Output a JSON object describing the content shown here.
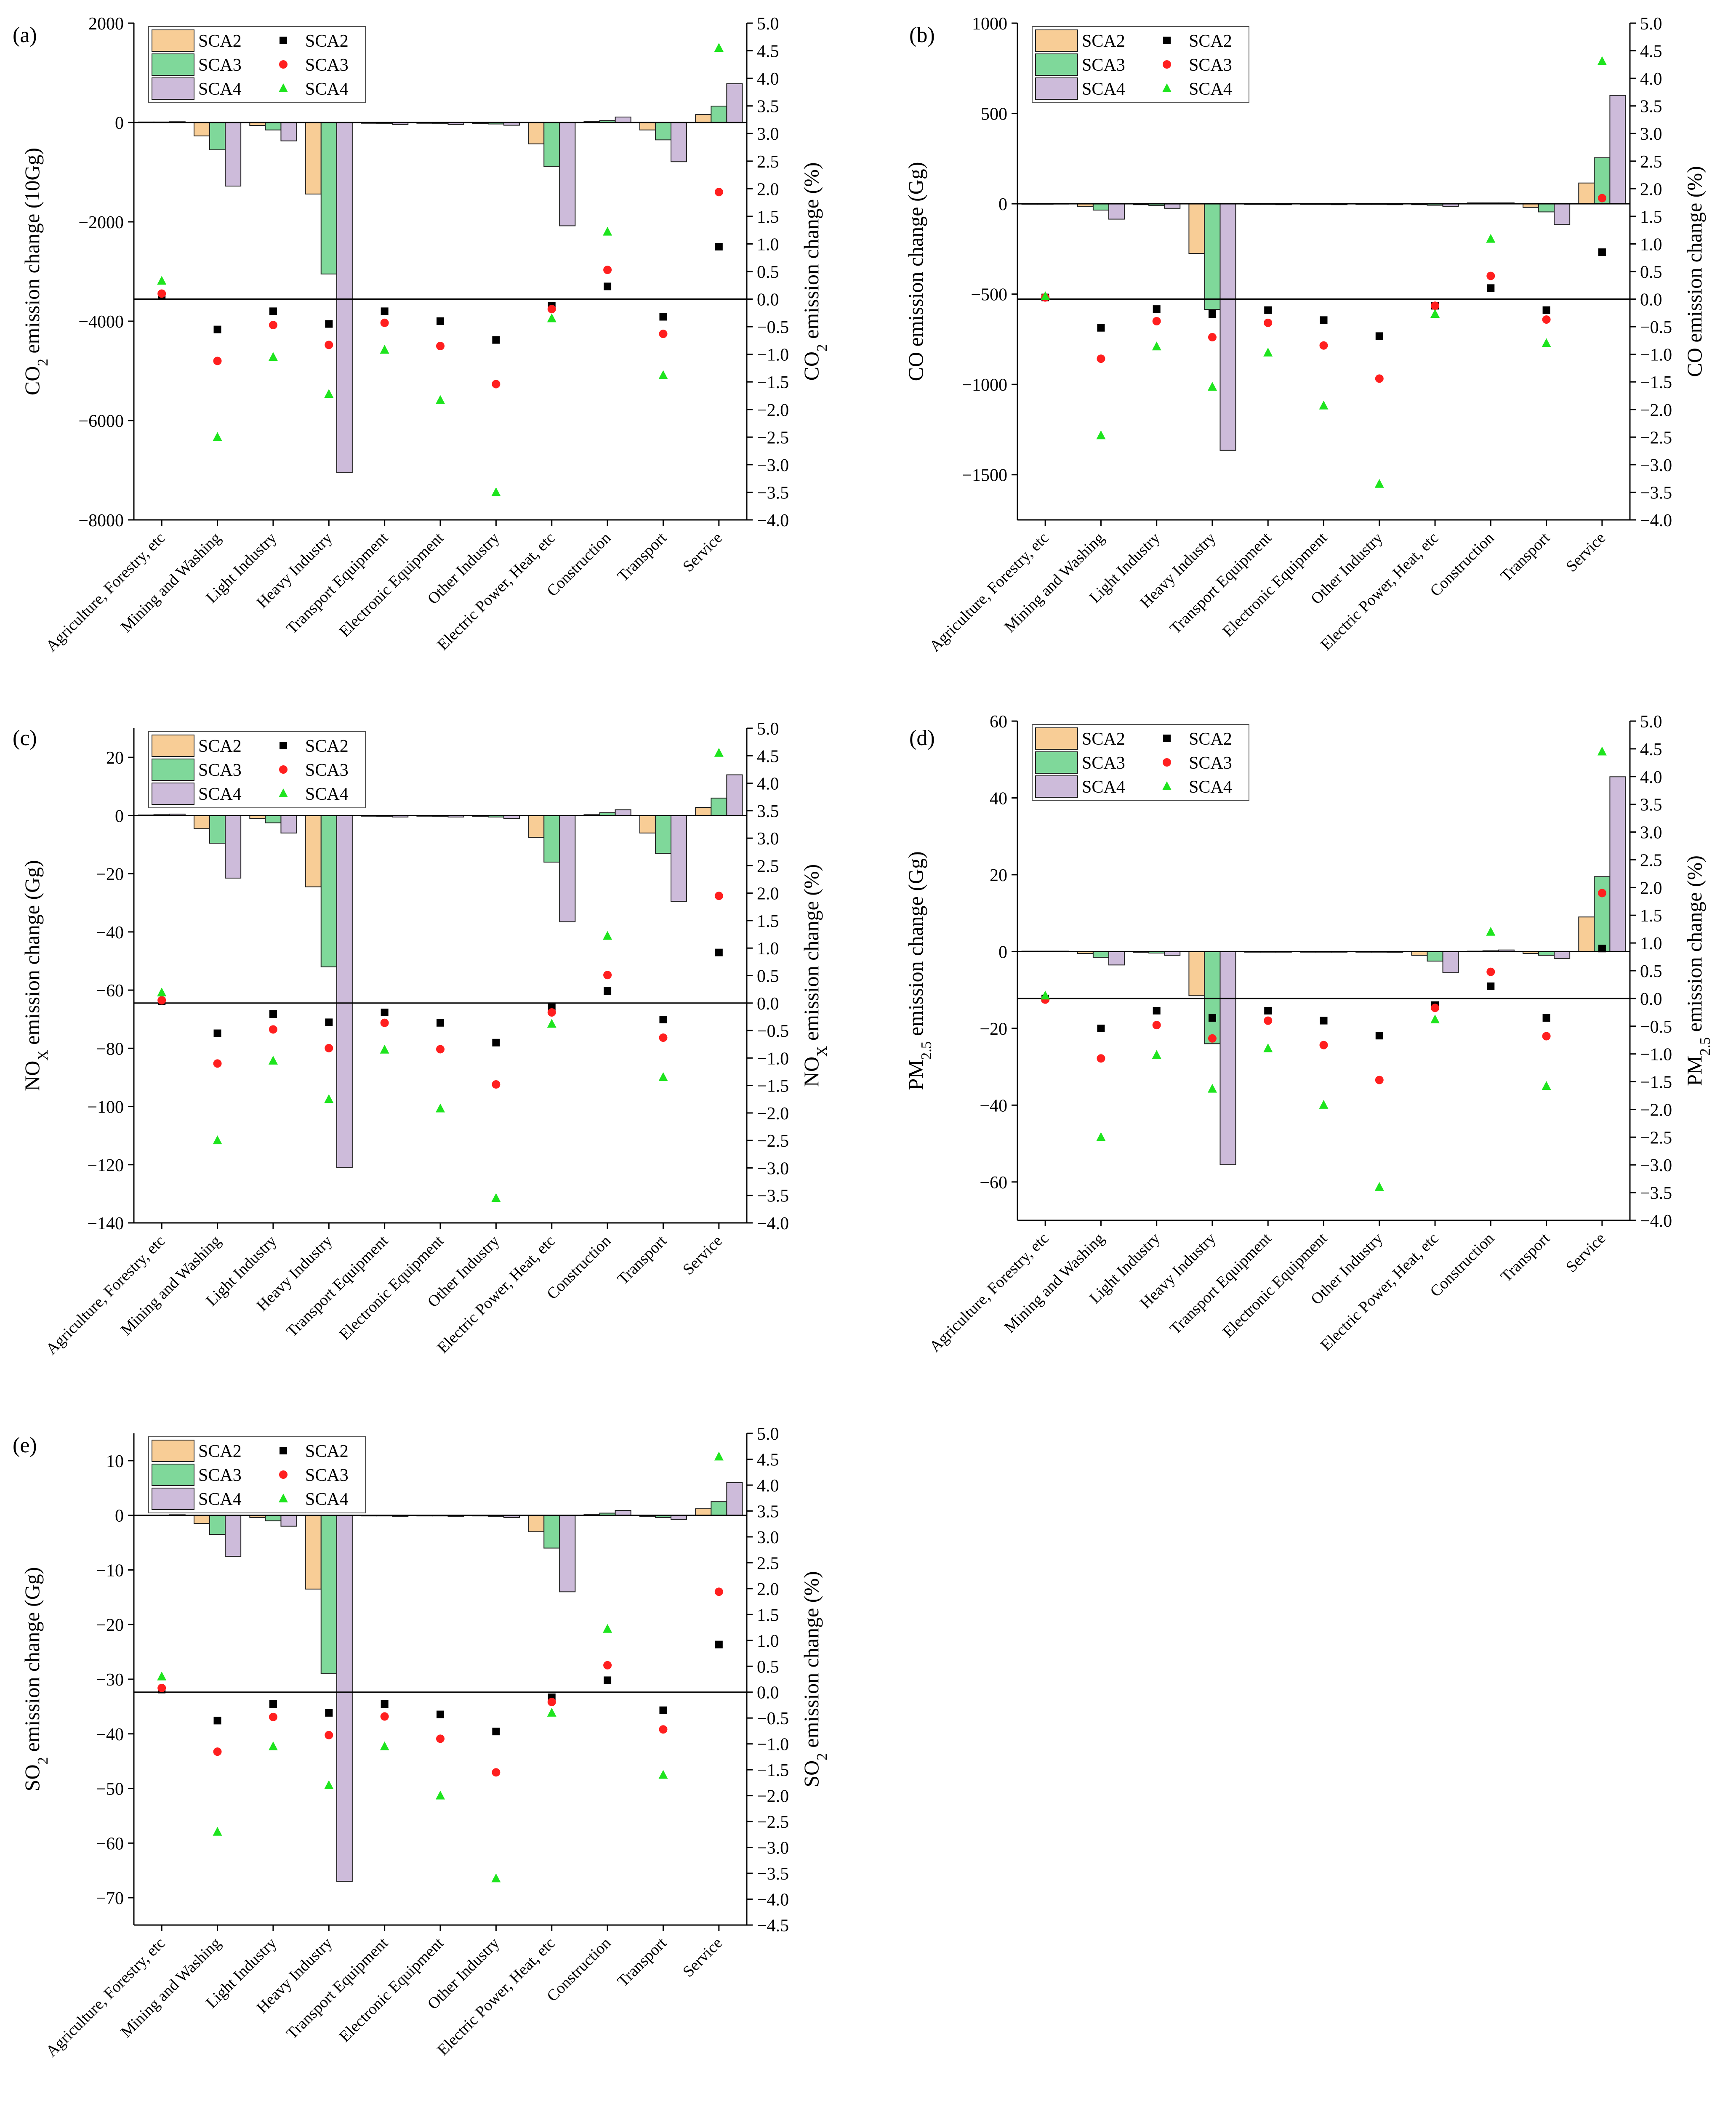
{
  "colors": {
    "SCA2_bar": "#f8cd96",
    "SCA3_bar": "#7fd89a",
    "SCA4_bar": "#cdbbda",
    "SCA2_pt": "#000000",
    "SCA3_pt": "#ff1f1f",
    "SCA4_pt": "#1ee41e"
  },
  "chart_data": [
    {
      "type": "bar",
      "panel": "(a)",
      "categories": [
        "Agriculture, Forestry, etc",
        "Mining and Washing",
        "Light Industry",
        "Heavy Industry",
        "Transport Equipment",
        "Electronic Equipment",
        "Other Industry",
        "Electric Power, Heat, etc",
        "Construction",
        "Transport",
        "Service"
      ],
      "ylabel_left": {
        "pre": "CO",
        "sub": "2",
        "post": " emission change (10Gg)"
      },
      "ylabel_right": {
        "pre": "CO",
        "sub": "2",
        "post": " emission change (%)"
      },
      "ylim_left": [
        -8000,
        2000
      ],
      "yticks_left": [
        2000,
        0,
        -2000,
        -4000,
        -6000,
        -8000
      ],
      "ytick_labels_left": [
        "2000",
        "0",
        "−2000",
        "−4000",
        "−6000",
        "−8000"
      ],
      "ylim_right": [
        -4.0,
        5.0
      ],
      "yticks_right": [
        5.0,
        4.5,
        4.0,
        3.5,
        3.0,
        2.5,
        2.0,
        1.5,
        1.0,
        0.5,
        0.0,
        -0.5,
        -1.0,
        -1.5,
        -2.0,
        -2.5,
        -3.0,
        -3.5,
        -4.0
      ],
      "ytick_labels_right": [
        "5.0",
        "4.5",
        "4.0",
        "3.5",
        "3.0",
        "2.5",
        "2.0",
        "1.5",
        "1.0",
        "0.5",
        "0.0",
        "−0.5",
        "−1.0",
        "−1.5",
        "−2.0",
        "−2.5",
        "−3.0",
        "−3.5",
        "−4.0"
      ],
      "right_range_ticks": [
        -4.0,
        5.0
      ],
      "bars": [
        {
          "name": "SCA2",
          "values": [
            10,
            -270,
            -60,
            -1440,
            -15,
            -15,
            -20,
            -430,
            20,
            -150,
            160
          ]
        },
        {
          "name": "SCA3",
          "values": [
            10,
            -550,
            -150,
            -3050,
            -25,
            -25,
            -30,
            -890,
            40,
            -350,
            330
          ]
        },
        {
          "name": "SCA4",
          "values": [
            15,
            -1280,
            -370,
            -7050,
            -40,
            -40,
            -55,
            -2080,
            110,
            -790,
            780
          ]
        }
      ],
      "points": [
        {
          "name": "SCA2",
          "values": [
            0.05,
            -0.55,
            -0.22,
            -0.45,
            -0.22,
            -0.4,
            -0.74,
            -0.12,
            0.23,
            -0.32,
            0.95
          ]
        },
        {
          "name": "SCA3",
          "values": [
            0.1,
            -1.12,
            -0.47,
            -0.83,
            -0.43,
            -0.85,
            -1.54,
            -0.18,
            0.53,
            -0.63,
            1.94
          ]
        },
        {
          "name": "SCA4",
          "values": [
            0.33,
            -2.5,
            -1.05,
            -1.72,
            -0.92,
            -1.83,
            -3.5,
            -0.35,
            1.22,
            -1.38,
            4.55
          ]
        }
      ],
      "legend": [
        "SCA2",
        "SCA3",
        "SCA4",
        "SCA2",
        "SCA3",
        "SCA4"
      ]
    },
    {
      "type": "bar",
      "panel": "(b)",
      "categories": [
        "Agriculture, Forestry, etc",
        "Mining and Washing",
        "Light Industry",
        "Heavy Industry",
        "Transport Equipment",
        "Electronic Equipment",
        "Other Industry",
        "Electric Power, Heat, etc",
        "Construction",
        "Transport",
        "Service"
      ],
      "ylabel_left": {
        "pre": "CO emission change (Gg)",
        "sub": "",
        "post": ""
      },
      "ylabel_right": {
        "pre": "CO emission change (%)",
        "sub": "",
        "post": ""
      },
      "ylim_left": [
        -1750,
        1000
      ],
      "yticks_left": [
        1000,
        500,
        0,
        -500,
        -1000,
        -1500
      ],
      "ytick_labels_left": [
        "1000",
        "500",
        "0",
        "−500",
        "−1000",
        "−1500"
      ],
      "ylim_right": [
        -4.0,
        5.0
      ],
      "yticks_right": [
        5.0,
        4.5,
        4.0,
        3.5,
        3.0,
        2.5,
        2.0,
        1.5,
        1.0,
        0.5,
        0.0,
        -0.5,
        -1.0,
        -1.5,
        -2.0,
        -2.5,
        -3.0,
        -3.5,
        -4.0
      ],
      "ytick_labels_right": [
        "5.0",
        "4.5",
        "4.0",
        "3.5",
        "3.0",
        "2.5",
        "2.0",
        "1.5",
        "1.0",
        "0.5",
        "0.0",
        "−0.5",
        "−1.0",
        "−1.5",
        "−2.0",
        "−2.5",
        "−3.0",
        "−3.5",
        "−4.0"
      ],
      "right_range_ticks": [
        -4.0,
        5.0
      ],
      "bars": [
        {
          "name": "SCA2",
          "values": [
            1,
            -15,
            -5,
            -275,
            -2,
            -2,
            -2,
            -5,
            5,
            -20,
            115
          ]
        },
        {
          "name": "SCA3",
          "values": [
            1,
            -35,
            -10,
            -585,
            -3,
            -3,
            -3,
            -8,
            5,
            -45,
            255
          ]
        },
        {
          "name": "SCA4",
          "values": [
            2,
            -85,
            -25,
            -1365,
            -5,
            -5,
            -5,
            -15,
            5,
            -115,
            600
          ]
        }
      ],
      "points": [
        {
          "name": "SCA2",
          "values": [
            0.03,
            -0.52,
            -0.18,
            -0.27,
            -0.2,
            -0.38,
            -0.67,
            -0.12,
            0.2,
            -0.2,
            0.85
          ]
        },
        {
          "name": "SCA3",
          "values": [
            0.03,
            -1.08,
            -0.4,
            -0.69,
            -0.43,
            -0.84,
            -1.44,
            -0.12,
            0.42,
            -0.37,
            1.83
          ]
        },
        {
          "name": "SCA4",
          "values": [
            0.05,
            -2.47,
            -0.86,
            -1.59,
            -0.97,
            -1.93,
            -3.35,
            -0.27,
            1.09,
            -0.8,
            4.31
          ]
        }
      ],
      "legend": [
        "SCA2",
        "SCA3",
        "SCA4",
        "SCA2",
        "SCA3",
        "SCA4"
      ]
    },
    {
      "type": "bar",
      "panel": "(c)",
      "categories": [
        "Agriculture, Forestry, etc",
        "Mining and Washing",
        "Light Industry",
        "Heavy Industry",
        "Transport Equipment",
        "Electronic Equipment",
        "Other Industry",
        "Electric Power, Heat, etc",
        "Construction",
        "Transport",
        "Service"
      ],
      "ylabel_left": {
        "pre": "NO",
        "sub": "X",
        "post": " emission change (Gg)"
      },
      "ylabel_right": {
        "pre": "NO",
        "sub": "X",
        "post": " emission change (%)"
      },
      "ylim_left": [
        -140,
        30
      ],
      "yticks_left": [
        20,
        0,
        -20,
        -40,
        -60,
        -80,
        -100,
        -120,
        -140
      ],
      "ytick_labels_left": [
        "20",
        "0",
        "−20",
        "−40",
        "−60",
        "−80",
        "−100",
        "−120",
        "−140"
      ],
      "ylim_right": [
        -4.0,
        5.0
      ],
      "yticks_right": [
        5.0,
        4.5,
        4.0,
        3.5,
        3.0,
        2.5,
        2.0,
        1.5,
        1.0,
        0.5,
        0.0,
        -0.5,
        -1.0,
        -1.5,
        -2.0,
        -2.5,
        -3.0,
        -3.5,
        -4.0
      ],
      "ytick_labels_right": [
        "5.0",
        "4.5",
        "4.0",
        "3.5",
        "3.0",
        "2.5",
        "2.0",
        "1.5",
        "1.0",
        "0.5",
        "0.0",
        "−0.5",
        "−1.0",
        "−1.5",
        "−2.0",
        "−2.5",
        "−3.0",
        "−3.5",
        "−4.0"
      ],
      "right_range_ticks": [
        -4.0,
        5.0
      ],
      "bars": [
        {
          "name": "SCA2",
          "values": [
            0.2,
            -4.5,
            -1.0,
            -24.5,
            -0.2,
            -0.2,
            -0.3,
            -7.5,
            0.3,
            -6.0,
            2.8
          ]
        },
        {
          "name": "SCA3",
          "values": [
            0.3,
            -9.5,
            -2.5,
            -52.0,
            -0.3,
            -0.3,
            -0.5,
            -16.0,
            1.0,
            -13.0,
            6.0
          ]
        },
        {
          "name": "SCA4",
          "values": [
            0.5,
            -21.5,
            -6.0,
            -121.0,
            -0.5,
            -0.5,
            -1.0,
            -36.5,
            2.0,
            -29.5,
            14.0
          ]
        }
      ],
      "points": [
        {
          "name": "SCA2",
          "values": [
            0.03,
            -0.55,
            -0.2,
            -0.35,
            -0.17,
            -0.36,
            -0.72,
            -0.07,
            0.22,
            -0.3,
            0.92
          ]
        },
        {
          "name": "SCA3",
          "values": [
            0.05,
            -1.1,
            -0.48,
            -0.82,
            -0.36,
            -0.84,
            -1.48,
            -0.17,
            0.51,
            -0.63,
            1.95
          ]
        },
        {
          "name": "SCA4",
          "values": [
            0.19,
            -2.5,
            -1.05,
            -1.75,
            -0.85,
            -1.92,
            -3.55,
            -0.38,
            1.22,
            -1.35,
            4.55
          ]
        }
      ],
      "legend": [
        "SCA2",
        "SCA3",
        "SCA4",
        "SCA2",
        "SCA3",
        "SCA4"
      ]
    },
    {
      "type": "bar",
      "panel": "(d)",
      "categories": [
        "Agriculture, Forestry, etc",
        "Mining and Washing",
        "Light Industry",
        "Heavy Industry",
        "Transport Equipment",
        "Electronic Equipment",
        "Other Industry",
        "Electric Power, Heat, etc",
        "Construction",
        "Transport",
        "Service"
      ],
      "ylabel_left": {
        "pre": "PM",
        "sub": "2.5",
        "post": " emission change (Gg)"
      },
      "ylabel_right": {
        "pre": "PM",
        "sub": "2.5",
        "post": " emission change (%)"
      },
      "ylim_left": [
        -70,
        60
      ],
      "yticks_left": [
        60,
        40,
        20,
        0,
        -20,
        -40,
        -60
      ],
      "ytick_labels_left": [
        "60",
        "40",
        "20",
        "0",
        "−20",
        "−40",
        "−60"
      ],
      "ylim_right": [
        -4.0,
        5.0
      ],
      "yticks_right": [
        5.0,
        4.5,
        4.0,
        3.5,
        3.0,
        2.5,
        2.0,
        1.5,
        1.0,
        0.5,
        0.0,
        -0.5,
        -1.0,
        -1.5,
        -2.0,
        -2.5,
        -3.0,
        -3.5,
        -4.0
      ],
      "ytick_labels_right": [
        "5.0",
        "4.5",
        "4.0",
        "3.5",
        "3.0",
        "2.5",
        "2.0",
        "1.5",
        "1.0",
        "0.5",
        "0.0",
        "−0.5",
        "−1.0",
        "−1.5",
        "−2.0",
        "−2.5",
        "−3.0",
        "−3.5",
        "−4.0"
      ],
      "right_range_ticks": [
        -4.0,
        5.0
      ],
      "bars": [
        {
          "name": "SCA2",
          "values": [
            0.1,
            -0.5,
            -0.2,
            -11.5,
            -0.1,
            -0.1,
            -0.1,
            -1.0,
            0.1,
            -0.5,
            9.0
          ]
        },
        {
          "name": "SCA3",
          "values": [
            0.1,
            -1.5,
            -0.4,
            -24.0,
            -0.1,
            -0.1,
            -0.1,
            -2.5,
            0.2,
            -1.0,
            19.5
          ]
        },
        {
          "name": "SCA4",
          "values": [
            0.1,
            -3.5,
            -1.0,
            -55.5,
            -0.1,
            -0.1,
            -0.2,
            -5.5,
            0.4,
            -1.8,
            45.5
          ]
        }
      ],
      "points": [
        {
          "name": "SCA2",
          "values": [
            0.0,
            -0.54,
            -0.22,
            -0.35,
            -0.22,
            -0.4,
            -0.67,
            -0.12,
            0.22,
            -0.35,
            0.9
          ]
        },
        {
          "name": "SCA3",
          "values": [
            -0.02,
            -1.08,
            -0.48,
            -0.72,
            -0.4,
            -0.84,
            -1.47,
            -0.17,
            0.48,
            -0.68,
            1.9
          ]
        },
        {
          "name": "SCA4",
          "values": [
            0.05,
            -2.5,
            -1.02,
            -1.63,
            -0.9,
            -1.92,
            -3.4,
            -0.38,
            1.2,
            -1.58,
            4.45
          ]
        }
      ],
      "legend": [
        "SCA2",
        "SCA3",
        "SCA4",
        "SCA2",
        "SCA3",
        "SCA4"
      ]
    },
    {
      "type": "bar",
      "panel": "(e)",
      "categories": [
        "Agriculture, Forestry, etc",
        "Mining and Washing",
        "Light Industry",
        "Heavy Industry",
        "Transport Equipment",
        "Electronic Equipment",
        "Other Industry",
        "Electric Power, Heat, etc",
        "Construction",
        "Transport",
        "Service"
      ],
      "ylabel_left": {
        "pre": "SO",
        "sub": "2",
        "post": " emission change (Gg)"
      },
      "ylabel_right": {
        "pre": "SO",
        "sub": "2",
        "post": " emission change (%)"
      },
      "ylim_left": [
        -75,
        15
      ],
      "yticks_left": [
        10,
        0,
        -10,
        -20,
        -30,
        -40,
        -50,
        -60,
        -70
      ],
      "ytick_labels_left": [
        "10",
        "0",
        "−10",
        "−20",
        "−30",
        "−40",
        "−50",
        "−60",
        "−70"
      ],
      "ylim_right": [
        -4.5,
        5.0
      ],
      "yticks_right": [
        5.0,
        4.5,
        4.0,
        3.5,
        3.0,
        2.5,
        2.0,
        1.5,
        1.0,
        0.5,
        0.0,
        -0.5,
        -1.0,
        -1.5,
        -2.0,
        -2.5,
        -3.0,
        -3.5,
        -4.0,
        -4.5
      ],
      "ytick_labels_right": [
        "5.0",
        "4.5",
        "4.0",
        "3.5",
        "3.0",
        "2.5",
        "2.0",
        "1.5",
        "1.0",
        "0.5",
        "0.0",
        "−0.5",
        "−1.0",
        "−1.5",
        "−2.0",
        "−2.5",
        "−3.0",
        "−3.5",
        "−4.0",
        "−4.5"
      ],
      "right_range_ticks": [
        -4.5,
        5.0
      ],
      "bars": [
        {
          "name": "SCA2",
          "values": [
            0.05,
            -1.5,
            -0.4,
            -13.5,
            -0.1,
            -0.1,
            -0.1,
            -3.0,
            0.2,
            -0.2,
            1.2
          ]
        },
        {
          "name": "SCA3",
          "values": [
            0.05,
            -3.5,
            -1.0,
            -29.0,
            -0.1,
            -0.1,
            -0.2,
            -6.0,
            0.4,
            -0.4,
            2.5
          ]
        },
        {
          "name": "SCA4",
          "values": [
            0.1,
            -7.5,
            -2.0,
            -67.0,
            -0.2,
            -0.2,
            -0.4,
            -14.0,
            0.9,
            -0.8,
            6.0
          ]
        }
      ],
      "points": [
        {
          "name": "SCA2",
          "values": [
            0.05,
            -0.55,
            -0.23,
            -0.4,
            -0.23,
            -0.43,
            -0.76,
            -0.1,
            0.23,
            -0.35,
            0.92
          ]
        },
        {
          "name": "SCA3",
          "values": [
            0.08,
            -1.15,
            -0.48,
            -0.83,
            -0.47,
            -0.9,
            -1.55,
            -0.19,
            0.52,
            -0.72,
            1.94
          ]
        },
        {
          "name": "SCA4",
          "values": [
            0.3,
            -2.7,
            -1.05,
            -1.8,
            -1.05,
            -2.0,
            -3.6,
            -0.4,
            1.22,
            -1.6,
            4.55
          ]
        }
      ],
      "legend": [
        "SCA2",
        "SCA3",
        "SCA4",
        "SCA2",
        "SCA3",
        "SCA4"
      ]
    }
  ]
}
